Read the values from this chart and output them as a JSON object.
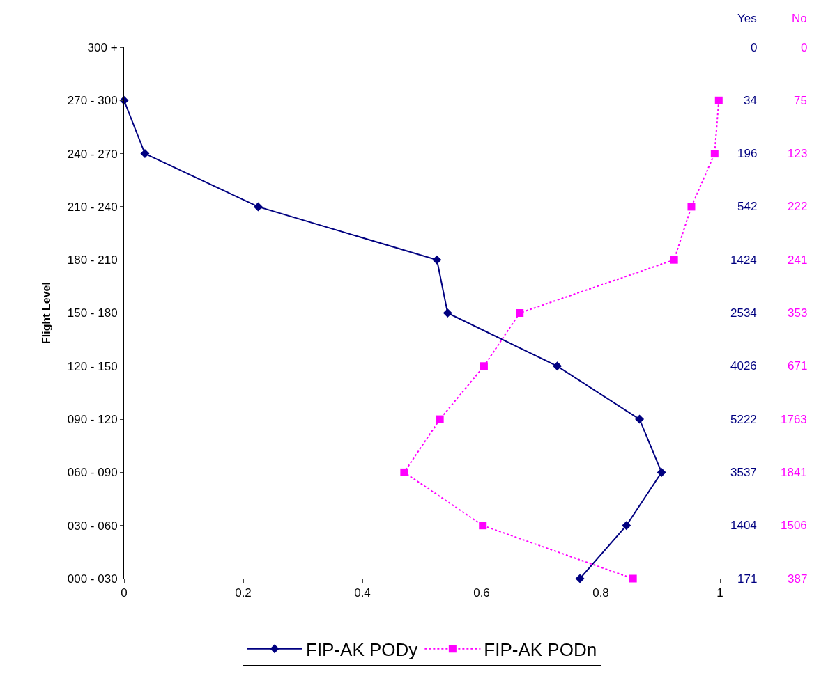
{
  "chart_data": {
    "type": "line",
    "orientation": "horizontal",
    "ylabel": "Flight Level",
    "categories": [
      "300 +",
      "270 - 300",
      "240 - 270",
      "210 - 240",
      "180 - 210",
      "150 - 180",
      "120 - 150",
      "090 - 120",
      "060 - 090",
      "030 - 060",
      "000 - 030"
    ],
    "series": [
      {
        "name": "FIP-AK PODy",
        "color": "#000080",
        "marker": "diamond",
        "line_style": "solid",
        "values": [
          null,
          0.0,
          0.035,
          0.225,
          0.525,
          0.543,
          0.727,
          0.865,
          0.902,
          0.843,
          0.765
        ]
      },
      {
        "name": "FIP-AK PODn",
        "color": "#ff00ff",
        "marker": "square",
        "line_style": "dotted",
        "values": [
          null,
          0.998,
          0.991,
          0.952,
          0.923,
          0.664,
          0.604,
          0.53,
          0.47,
          0.602,
          0.854
        ]
      }
    ],
    "xlim": [
      0,
      1
    ],
    "xticks": [
      0,
      0.2,
      0.4,
      0.6,
      0.8,
      1
    ],
    "legend": "bottom",
    "annotations": [
      "Yes",
      "No",
      "0",
      "0",
      "34",
      "75",
      "196",
      "123",
      "542",
      "222",
      "1424",
      "241",
      "2534",
      "353",
      "4026",
      "671",
      "5222",
      "1763",
      "3537",
      "1841",
      "1404",
      "1506",
      "171",
      "387"
    ]
  }
}
